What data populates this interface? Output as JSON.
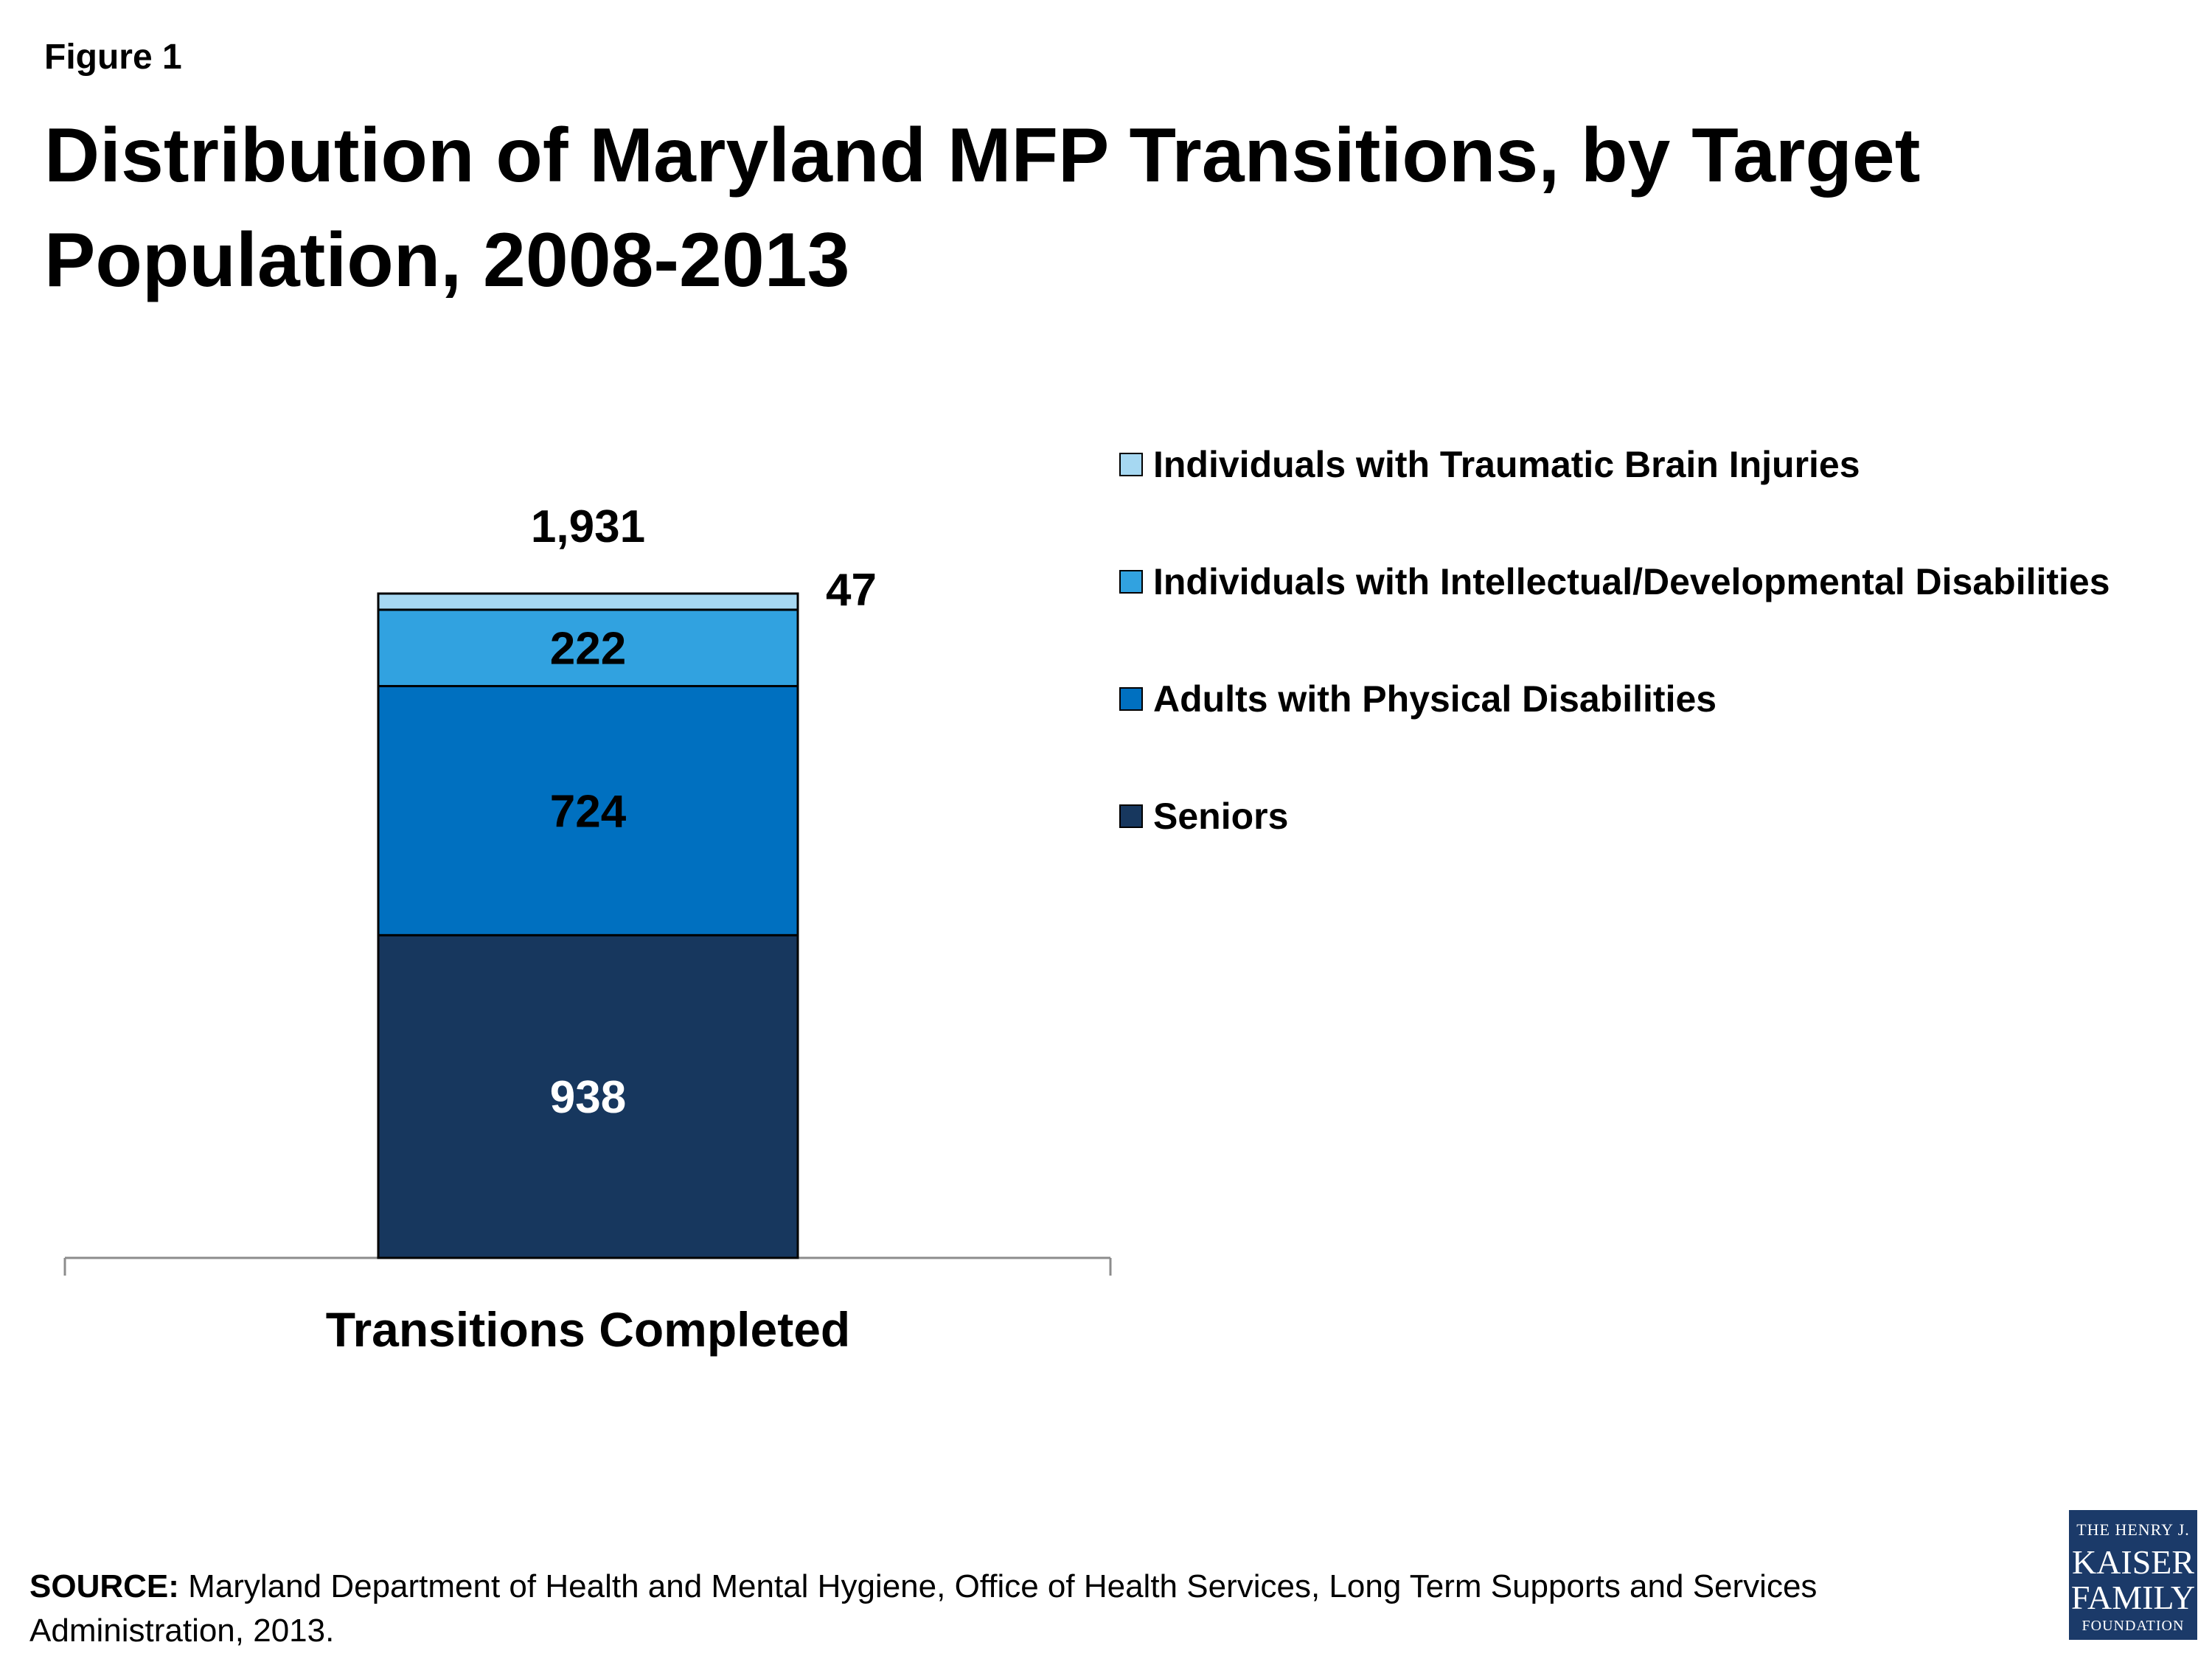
{
  "figure_label": "Figure 1",
  "title": "Distribution of Maryland MFP Transitions, by Target Population, 2008-2013",
  "source": {
    "label": "SOURCE:",
    "text": " Maryland Department of Health and Mental Hygiene, Office of Health Services, Long Term Supports and Services Administration, 2013."
  },
  "logo": {
    "line1": "THE HENRY J.",
    "line2": "KAISER",
    "line3": "FAMILY",
    "line4": "FOUNDATION"
  },
  "chart_data": {
    "type": "bar",
    "stacked": true,
    "categories": [
      "Transitions Completed"
    ],
    "total_label": "1,931",
    "ylim": [
      0,
      1931
    ],
    "grid": false,
    "legend_position": "right",
    "series": [
      {
        "name": "Seniors",
        "values": [
          938
        ],
        "label": "938",
        "color": "#17375e",
        "label_color": "#ffffff"
      },
      {
        "name": "Adults with Physical Disabilities",
        "values": [
          724
        ],
        "label": "724",
        "color": "#0070c0",
        "label_color": "#000000"
      },
      {
        "name": "Individuals with Intellectual/Developmental Disabilities",
        "values": [
          222
        ],
        "label": "222",
        "color": "#31a2e0",
        "label_color": "#000000"
      },
      {
        "name": "Individuals with Traumatic Brain Injuries",
        "values": [
          47
        ],
        "label": "47",
        "color": "#a6d8f2",
        "label_color": "#000000"
      }
    ]
  }
}
